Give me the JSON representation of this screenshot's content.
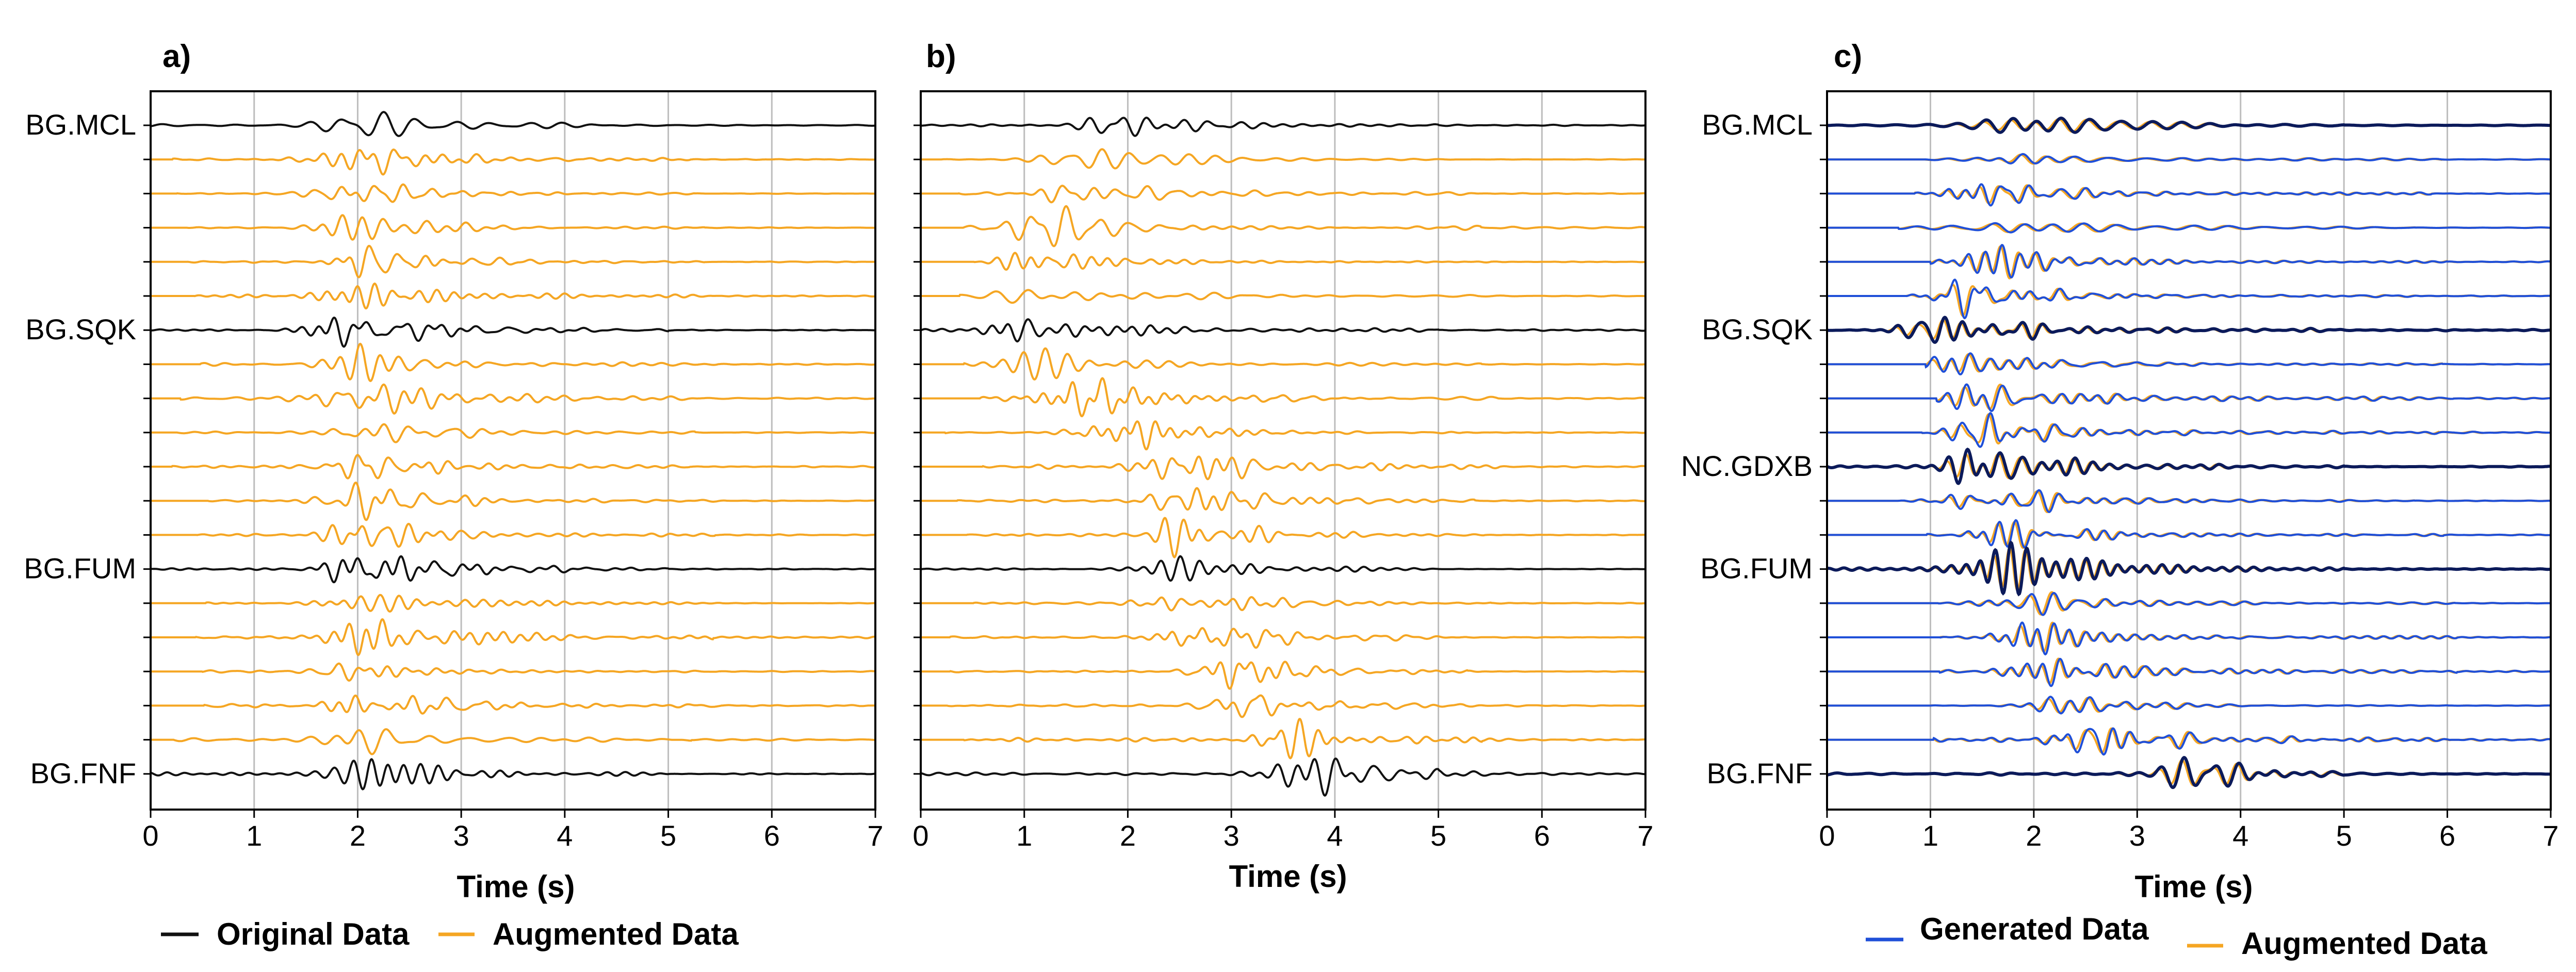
{
  "colors": {
    "original": "#111111",
    "augmented": "#f5a623",
    "generated": "#1f4fd8",
    "grid": "#bdbdbd"
  },
  "legend_a": {
    "original": "Original Data",
    "augmented": "Augmented Data"
  },
  "legend_c": {
    "generated": "Generated Data",
    "augmented": "Augmented Data"
  },
  "chart_data": [
    {
      "panel": "a)",
      "type": "line",
      "xlabel": "Time (s)",
      "xlim": [
        0,
        7
      ],
      "xticks": [
        0,
        1,
        2,
        3,
        4,
        5,
        6,
        7
      ],
      "grid": "vertical",
      "n_traces": 20,
      "station_labels": [
        {
          "trace": 0,
          "name": "BG.MCL"
        },
        {
          "trace": 6,
          "name": "BG.SQK"
        },
        {
          "trace": 13,
          "name": "BG.FUM"
        },
        {
          "trace": 19,
          "name": "BG.FNF"
        }
      ],
      "original_traces": [
        0,
        6,
        13,
        19
      ],
      "pulse_centers_s": [
        2.05,
        2.08,
        2.06,
        2.06,
        2.05,
        2.04,
        1.95,
        2.05,
        2.04,
        2.03,
        2.05,
        2.06,
        2.07,
        2.05,
        2.08,
        2.1,
        2.08,
        2.1,
        2.1,
        2.12
      ],
      "legend": [
        "Original Data",
        "Augmented Data"
      ]
    },
    {
      "panel": "b)",
      "type": "line",
      "xlabel": "Time (s)",
      "xlim": [
        0,
        7
      ],
      "xticks": [
        0,
        1,
        2,
        3,
        4,
        5,
        6,
        7
      ],
      "grid": "vertical",
      "n_traces": 20,
      "original_traces": [
        0,
        6,
        13,
        19
      ],
      "pulse_centers_s": [
        1.9,
        1.55,
        1.4,
        1.25,
        1.1,
        1.0,
        0.95,
        1.1,
        1.6,
        1.95,
        2.6,
        2.6,
        2.5,
        2.45,
        2.6,
        2.7,
        2.95,
        3.15,
        3.45,
        3.9
      ]
    },
    {
      "panel": "c)",
      "type": "line",
      "xlabel": "Time (s)",
      "xlim": [
        0,
        7
      ],
      "xticks": [
        0,
        1,
        2,
        3,
        4,
        5,
        6,
        7
      ],
      "grid": "vertical",
      "n_traces": 20,
      "station_labels": [
        {
          "trace": 0,
          "name": "BG.MCL"
        },
        {
          "trace": 6,
          "name": "BG.SQK"
        },
        {
          "trace": 10,
          "name": "NC.GDXB"
        },
        {
          "trace": 13,
          "name": "BG.FUM"
        },
        {
          "trace": 19,
          "name": "BG.FNF"
        }
      ],
      "original_traces": [
        0,
        6,
        10,
        13,
        19
      ],
      "pulse_centers_s": [
        2.0,
        1.85,
        1.75,
        1.65,
        1.5,
        1.35,
        1.2,
        1.35,
        1.45,
        1.5,
        1.5,
        1.6,
        1.75,
        1.75,
        1.9,
        2.05,
        2.15,
        2.4,
        2.65,
        3.3
      ],
      "legend": [
        "Generated Data",
        "Augmented Data"
      ]
    }
  ]
}
